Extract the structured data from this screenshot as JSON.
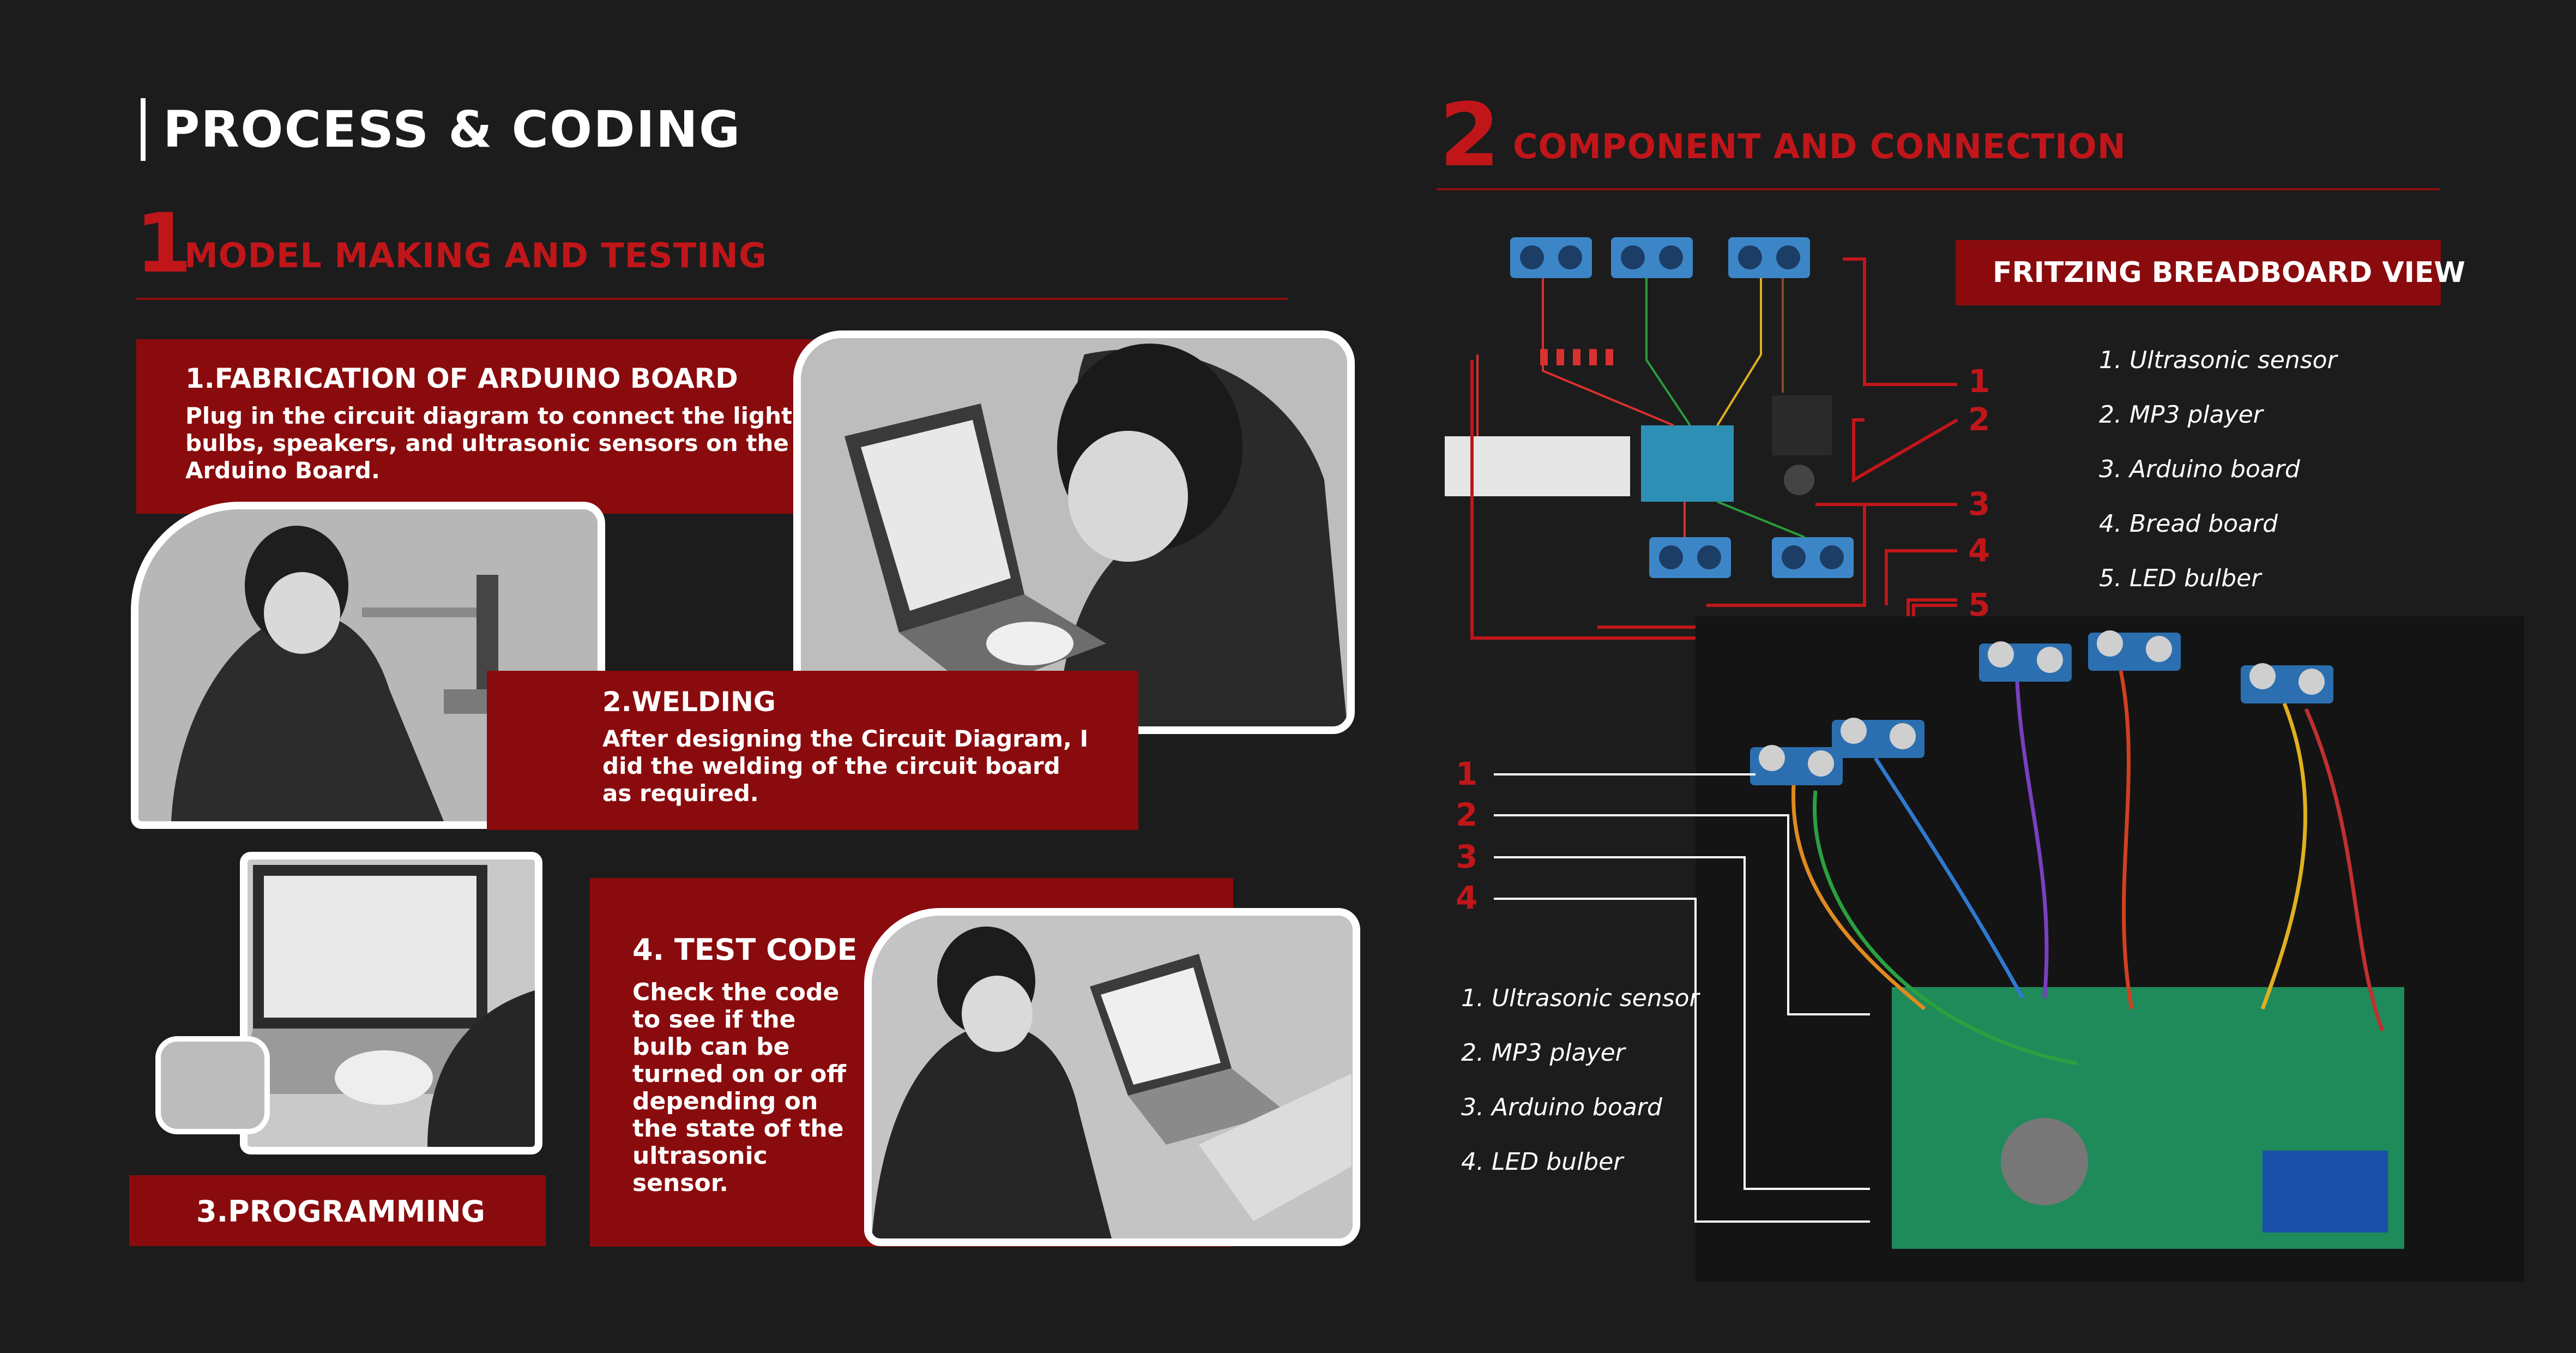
{
  "header": {
    "title": "PROCESS & CODING"
  },
  "section1": {
    "number": "1",
    "title": "MODEL MAKING AND TESTING"
  },
  "section2": {
    "number": "2",
    "title": "COMPONENT AND CONNECTION"
  },
  "steps": {
    "fabrication": {
      "title": "1.FABRICATION OF ARDUINO BOARD",
      "text": "Plug in the circuit diagram to connect the light bulbs, speakers, and ultrasonic sensors on the Arduino Board."
    },
    "welding": {
      "title": "2.WELDING",
      "text": "After designing the Circuit Diagram, I did the welding of the circuit board as required."
    },
    "programming": {
      "title": "3.PROGRAMMING"
    },
    "test_code": {
      "title": "4. TEST CODE",
      "text": "Check the code to see if the bulb can be turned on or off depending on the state of the ultrasonic sensor."
    }
  },
  "fritzing": {
    "label": "FRITZING BREADBOARD VIEW",
    "callouts": [
      "1",
      "2",
      "3",
      "4",
      "5"
    ],
    "legend": [
      "1. Ultrasonic sensor",
      "2. MP3 player",
      "3. Arduino board",
      "4. Bread board",
      "5. LED bulber"
    ]
  },
  "physical": {
    "callouts": [
      "1",
      "2",
      "3",
      "4"
    ],
    "legend": [
      "1. Ultrasonic sensor",
      "2. MP3 player",
      "3. Arduino board",
      "4. LED bulber"
    ]
  },
  "colors": {
    "accent": "#c0161a",
    "panel": "#8a0b0d",
    "background": "#1c1c1c"
  }
}
